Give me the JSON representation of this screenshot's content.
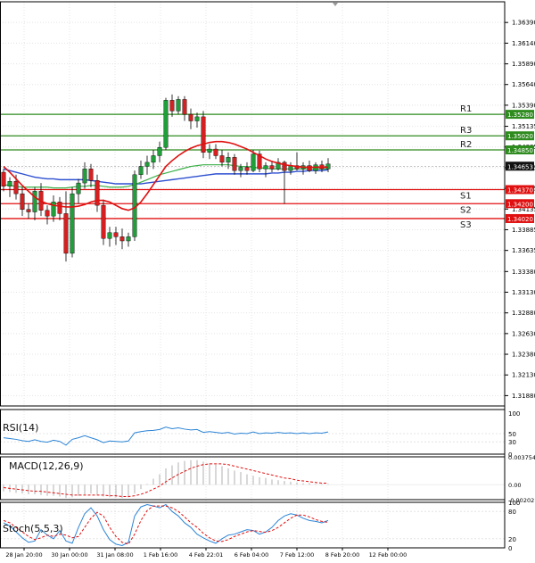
{
  "colors": {
    "bull": "#1f9e3a",
    "bear": "#d42020",
    "resistance": "#2e8b1e",
    "support": "#e01010",
    "ma_fast": "#e01010",
    "ma_mid": "#3cb04a",
    "ma_slow": "#2d4fd0",
    "indicator": "#2b84d6",
    "macd_hist": "#bdbdbd",
    "macd_signal": "#e01010",
    "stoch_main": "#2b84d6",
    "stoch_signal": "#e01010",
    "current_price_bg": "#111111",
    "grid": "#e4e4e4",
    "axis": "#000000"
  },
  "chart_data": [
    {
      "type": "candlestick",
      "title": "",
      "ylim": [
        1.31755,
        1.3664
      ],
      "y_ticks": [
        "1.36390",
        "1.36140",
        "1.35890",
        "1.35640",
        "1.35390",
        "1.35135",
        "1.34885",
        "1.34635",
        "1.34385",
        "1.34135",
        "1.33885",
        "1.33635",
        "1.33380",
        "1.33130",
        "1.32880",
        "1.32630",
        "1.32380",
        "1.32130",
        "1.31880"
      ],
      "x_labels": [
        "28 Jan 20:00",
        "30 Jan 00:00",
        "31 Jan 08:00",
        "1 Feb 16:00",
        "4 Feb 22:01",
        "6 Feb 04:00",
        "7 Feb 12:00",
        "8 Feb 20:00",
        "12 Feb 00:00"
      ],
      "current_price": {
        "value": 1.34653,
        "label": "1.34653"
      },
      "levels": [
        {
          "name": "R3",
          "value": 1.3502,
          "label": "1.35020",
          "kind": "resistance"
        },
        {
          "name": "R2",
          "value": 1.3485,
          "label": "1.34850",
          "kind": "resistance"
        },
        {
          "name": "R1",
          "value": 1.3528,
          "label": "1.35280",
          "kind": "resistance"
        },
        {
          "name": "S1",
          "value": 1.3437,
          "label": "1.34370",
          "kind": "support"
        },
        {
          "name": "S2",
          "value": 1.342,
          "label": "1.34200",
          "kind": "support"
        },
        {
          "name": "S3",
          "value": 1.3402,
          "label": "1.34020",
          "kind": "support"
        }
      ],
      "candles": [
        [
          1.3458,
          1.3462,
          1.3435,
          1.3441
        ],
        [
          1.3441,
          1.3452,
          1.3428,
          1.3447
        ],
        [
          1.3447,
          1.3455,
          1.3425,
          1.3432
        ],
        [
          1.3432,
          1.344,
          1.3405,
          1.3413
        ],
        [
          1.3413,
          1.342,
          1.3402,
          1.341
        ],
        [
          1.341,
          1.344,
          1.34,
          1.3435
        ],
        [
          1.3435,
          1.3445,
          1.3405,
          1.3412
        ],
        [
          1.3412,
          1.3418,
          1.3395,
          1.3405
        ],
        [
          1.3405,
          1.343,
          1.3398,
          1.3422
        ],
        [
          1.3422,
          1.3428,
          1.34,
          1.3408
        ],
        [
          1.3408,
          1.3435,
          1.335,
          1.336
        ],
        [
          1.336,
          1.344,
          1.3355,
          1.3432
        ],
        [
          1.3432,
          1.345,
          1.342,
          1.3445
        ],
        [
          1.3445,
          1.347,
          1.3438,
          1.3462
        ],
        [
          1.3462,
          1.3468,
          1.344,
          1.3448
        ],
        [
          1.3448,
          1.3455,
          1.341,
          1.3418
        ],
        [
          1.3418,
          1.3425,
          1.337,
          1.3378
        ],
        [
          1.3378,
          1.3392,
          1.3368,
          1.3385
        ],
        [
          1.3385,
          1.3392,
          1.337,
          1.338
        ],
        [
          1.338,
          1.339,
          1.3365,
          1.3375
        ],
        [
          1.3375,
          1.3385,
          1.3368,
          1.338
        ],
        [
          1.338,
          1.346,
          1.3375,
          1.3455
        ],
        [
          1.3455,
          1.3472,
          1.345,
          1.3465
        ],
        [
          1.3465,
          1.3478,
          1.3455,
          1.347
        ],
        [
          1.347,
          1.3485,
          1.3462,
          1.3478
        ],
        [
          1.3478,
          1.3495,
          1.347,
          1.3488
        ],
        [
          1.3488,
          1.3548,
          1.3485,
          1.3545
        ],
        [
          1.3545,
          1.3552,
          1.3525,
          1.3532
        ],
        [
          1.3532,
          1.355,
          1.3528,
          1.3546
        ],
        [
          1.3546,
          1.355,
          1.352,
          1.3528
        ],
        [
          1.3528,
          1.3535,
          1.351,
          1.352
        ],
        [
          1.352,
          1.353,
          1.3512,
          1.3525
        ],
        [
          1.3525,
          1.3532,
          1.3475,
          1.3482
        ],
        [
          1.3482,
          1.3492,
          1.3474,
          1.3486
        ],
        [
          1.3486,
          1.3492,
          1.3474,
          1.3478
        ],
        [
          1.3478,
          1.3485,
          1.3465,
          1.347
        ],
        [
          1.347,
          1.3482,
          1.3462,
          1.3476
        ],
        [
          1.3476,
          1.348,
          1.3455,
          1.346
        ],
        [
          1.346,
          1.3468,
          1.3452,
          1.3464
        ],
        [
          1.3464,
          1.347,
          1.3455,
          1.346
        ],
        [
          1.346,
          1.3485,
          1.3458,
          1.348
        ],
        [
          1.348,
          1.3484,
          1.3458,
          1.3462
        ],
        [
          1.3462,
          1.347,
          1.3452,
          1.3466
        ],
        [
          1.3466,
          1.3472,
          1.3458,
          1.3462
        ],
        [
          1.3462,
          1.3475,
          1.346,
          1.347
        ],
        [
          1.347,
          1.3472,
          1.342,
          1.346
        ],
        [
          1.346,
          1.347,
          1.3455,
          1.3466
        ],
        [
          1.3466,
          1.3482,
          1.346,
          1.3462
        ],
        [
          1.3462,
          1.347,
          1.3455,
          1.3466
        ],
        [
          1.3466,
          1.3472,
          1.3458,
          1.346
        ],
        [
          1.346,
          1.347,
          1.3456,
          1.3467
        ],
        [
          1.3467,
          1.3472,
          1.3458,
          1.3462
        ],
        [
          1.3462,
          1.3475,
          1.3458,
          1.3468
        ]
      ],
      "ma_fast": [
        1.3465,
        1.3458,
        1.345,
        1.3442,
        1.3435,
        1.3428,
        1.3423,
        1.342,
        1.3418,
        1.3417,
        1.3416,
        1.3416,
        1.3417,
        1.3419,
        1.3422,
        1.3424,
        1.3424,
        1.3422,
        1.3418,
        1.3414,
        1.3412,
        1.3415,
        1.3422,
        1.3432,
        1.3443,
        1.3454,
        1.3465,
        1.3472,
        1.3478,
        1.3483,
        1.3487,
        1.349,
        1.3492,
        1.3494,
        1.3495,
        1.3495,
        1.3494,
        1.3492,
        1.3489,
        1.3486,
        1.3482,
        1.3478,
        1.3474,
        1.3471,
        1.3469,
        1.3467,
        1.3466,
        1.3465,
        1.3464,
        1.3464,
        1.3464,
        1.3464,
        1.3464
      ],
      "ma_mid": [
        1.3443,
        1.3442,
        1.3441,
        1.344,
        1.344,
        1.344,
        1.344,
        1.344,
        1.3439,
        1.3439,
        1.3439,
        1.344,
        1.3441,
        1.3441,
        1.3442,
        1.3442,
        1.3441,
        1.344,
        1.344,
        1.344,
        1.3441,
        1.3443,
        1.3446,
        1.3449,
        1.3452,
        1.3455,
        1.3457,
        1.3459,
        1.3461,
        1.3463,
        1.3465,
        1.3466,
        1.3467,
        1.3467,
        1.3467,
        1.3467,
        1.3467,
        1.3466,
        1.3465,
        1.3465,
        1.3464,
        1.3463,
        1.3463,
        1.3462,
        1.3462,
        1.3462,
        1.3462,
        1.3462,
        1.3462,
        1.3462,
        1.3462,
        1.3462,
        1.3462
      ],
      "ma_slow": [
        1.3462,
        1.346,
        1.3458,
        1.3456,
        1.3454,
        1.3452,
        1.3451,
        1.345,
        1.345,
        1.3449,
        1.3449,
        1.3449,
        1.3449,
        1.3449,
        1.3448,
        1.3447,
        1.3446,
        1.3445,
        1.3444,
        1.3444,
        1.3444,
        1.3444,
        1.3444,
        1.3445,
        1.3446,
        1.3447,
        1.3448,
        1.3449,
        1.345,
        1.3451,
        1.3452,
        1.3453,
        1.3454,
        1.3455,
        1.3456,
        1.3456,
        1.3456,
        1.3456,
        1.3456,
        1.3456,
        1.3456,
        1.3456,
        1.3456,
        1.3457,
        1.3457,
        1.3458,
        1.3458,
        1.3459,
        1.3459,
        1.346,
        1.346,
        1.346,
        1.3461
      ]
    },
    {
      "type": "line",
      "title": "RSI(14)",
      "ylim": [
        0,
        100
      ],
      "y_ticks": [
        "100",
        "50",
        "30",
        "0"
      ],
      "series": [
        {
          "values": [
            40,
            38,
            36,
            33,
            31,
            35,
            31,
            29,
            34,
            31,
            22,
            36,
            40,
            45,
            40,
            35,
            28,
            32,
            31,
            30,
            32,
            52,
            55,
            57,
            58,
            60,
            66,
            62,
            64,
            61,
            59,
            60,
            53,
            55,
            53,
            51,
            53,
            49,
            51,
            50,
            54,
            50,
            52,
            51,
            53,
            51,
            52,
            50,
            52,
            50,
            52,
            51,
            54
          ]
        }
      ]
    },
    {
      "type": "bar",
      "title": "MACD(12,26,9)",
      "ylim": [
        -0.002021,
        0.003754
      ],
      "y_ticks": [
        "0.003754",
        "0.00",
        "-0.002021"
      ],
      "series": [
        {
          "values": [
            -0.0009,
            -0.001,
            -0.0011,
            -0.0012,
            -0.0013,
            -0.0013,
            -0.0014,
            -0.0015,
            -0.0015,
            -0.0016,
            -0.0018,
            -0.0017,
            -0.0015,
            -0.0013,
            -0.0012,
            -0.0013,
            -0.0016,
            -0.0017,
            -0.0017,
            -0.0018,
            -0.0017,
            -0.0012,
            -0.0006,
            0.0001,
            0.0008,
            0.0014,
            0.0022,
            0.0026,
            0.003,
            0.0032,
            0.0033,
            0.0033,
            0.0031,
            0.0029,
            0.0027,
            0.0025,
            0.0022,
            0.0019,
            0.0017,
            0.0014,
            0.0012,
            0.001,
            0.0009,
            0.0007,
            0.0006,
            0.0005,
            0.0004,
            0.0003,
            0.0002,
            0.0002,
            0.0001,
            0.0001,
            0.0001
          ]
        },
        {
          "values": [
            -0.0004,
            -0.0005,
            -0.0006,
            -0.0007,
            -0.0008,
            -0.0009,
            -0.0009,
            -0.001,
            -0.0011,
            -0.0012,
            -0.0013,
            -0.0014,
            -0.0014,
            -0.0014,
            -0.0014,
            -0.0014,
            -0.0014,
            -0.0015,
            -0.0015,
            -0.0016,
            -0.0016,
            -0.0015,
            -0.0013,
            -0.001,
            -0.0006,
            -0.0002,
            0.0004,
            0.0009,
            0.0014,
            0.0018,
            0.0022,
            0.0025,
            0.0027,
            0.0028,
            0.0028,
            0.0028,
            0.0027,
            0.0025,
            0.0023,
            0.0021,
            0.0019,
            0.0017,
            0.0015,
            0.0013,
            0.0011,
            0.0009,
            0.0008,
            0.0006,
            0.0005,
            0.0004,
            0.0003,
            0.0002,
            0.0002
          ]
        }
      ]
    },
    {
      "type": "line",
      "title": "Stoch(5,5,3)",
      "ylim": [
        0,
        100
      ],
      "y_ticks": [
        "100",
        "80",
        "20",
        "0"
      ],
      "series": [
        {
          "values": [
            55,
            48,
            35,
            22,
            12,
            15,
            40,
            28,
            20,
            38,
            15,
            10,
            45,
            75,
            88,
            70,
            40,
            18,
            8,
            5,
            12,
            70,
            90,
            95,
            92,
            88,
            95,
            80,
            70,
            55,
            45,
            30,
            22,
            15,
            10,
            20,
            28,
            30,
            35,
            40,
            38,
            30,
            35,
            45,
            60,
            70,
            75,
            72,
            65,
            60,
            58,
            55,
            60
          ]
        },
        {
          "values": [
            60,
            55,
            45,
            35,
            25,
            18,
            22,
            28,
            25,
            30,
            28,
            22,
            25,
            45,
            65,
            78,
            70,
            45,
            25,
            12,
            8,
            30,
            60,
            82,
            92,
            92,
            92,
            88,
            80,
            68,
            55,
            45,
            32,
            22,
            15,
            14,
            18,
            25,
            30,
            35,
            38,
            36,
            34,
            38,
            45,
            55,
            65,
            72,
            72,
            68,
            62,
            58,
            56
          ]
        }
      ]
    }
  ]
}
